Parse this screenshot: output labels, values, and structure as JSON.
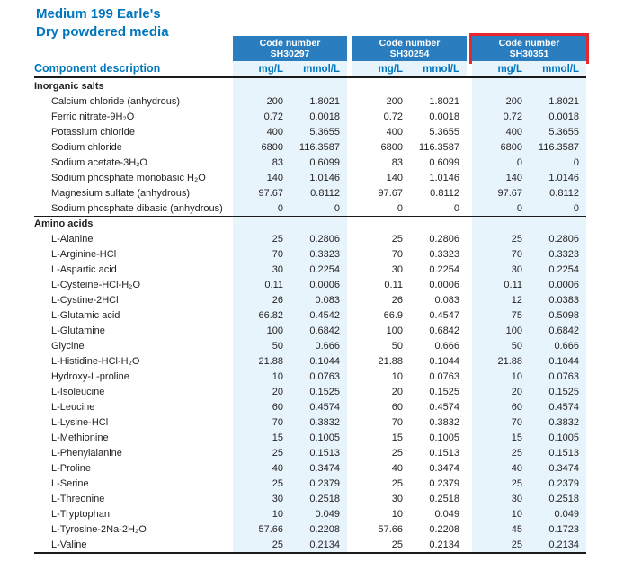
{
  "title": {
    "line1": "Medium 199 Earle's",
    "line2": "Dry powdered media"
  },
  "columns": {
    "component_header": "Component description",
    "code_label": "Code number",
    "codes": [
      "SH30297",
      "SH30254",
      "SH30351"
    ],
    "highlighted_code": "SH30351",
    "unit_headers": [
      "mg/L",
      "mmol/L"
    ]
  },
  "colors": {
    "brand_blue": "#0076bd",
    "code_block_bg": "#2a7dbf",
    "column_band": "#e8f4fb",
    "highlight_red": "#e8262d",
    "text": "#231f20",
    "rule": "#1a1a1a"
  },
  "sections": [
    {
      "label": "Inorganic salts",
      "rows": [
        {
          "name": "Calcium chloride (anhydrous)",
          "values": [
            "200",
            "1.8021",
            "200",
            "1.8021",
            "200",
            "1.8021"
          ]
        },
        {
          "name": "Ferric nitrate-9H₂O",
          "values": [
            "0.72",
            "0.0018",
            "0.72",
            "0.0018",
            "0.72",
            "0.0018"
          ]
        },
        {
          "name": "Potassium chloride",
          "values": [
            "400",
            "5.3655",
            "400",
            "5.3655",
            "400",
            "5.3655"
          ]
        },
        {
          "name": "Sodium chloride",
          "values": [
            "6800",
            "116.3587",
            "6800",
            "116.3587",
            "6800",
            "116.3587"
          ]
        },
        {
          "name": "Sodium acetate-3H₂O",
          "values": [
            "83",
            "0.6099",
            "83",
            "0.6099",
            "0",
            "0"
          ]
        },
        {
          "name": "Sodium phosphate monobasic H₂O",
          "values": [
            "140",
            "1.0146",
            "140",
            "1.0146",
            "140",
            "1.0146"
          ]
        },
        {
          "name": "Magnesium sulfate (anhydrous)",
          "values": [
            "97.67",
            "0.8112",
            "97.67",
            "0.8112",
            "97.67",
            "0.8112"
          ]
        },
        {
          "name": "Sodium phosphate dibasic (anhydrous)",
          "values": [
            "0",
            "0",
            "0",
            "0",
            "0",
            "0"
          ]
        }
      ]
    },
    {
      "label": "Amino acids",
      "rows": [
        {
          "name": "L-Alanine",
          "values": [
            "25",
            "0.2806",
            "25",
            "0.2806",
            "25",
            "0.2806"
          ]
        },
        {
          "name": "L-Arginine-HCl",
          "values": [
            "70",
            "0.3323",
            "70",
            "0.3323",
            "70",
            "0.3323"
          ]
        },
        {
          "name": "L-Aspartic acid",
          "values": [
            "30",
            "0.2254",
            "30",
            "0.2254",
            "30",
            "0.2254"
          ]
        },
        {
          "name": "L-Cysteine-HCl-H₂O",
          "values": [
            "0.11",
            "0.0006",
            "0.11",
            "0.0006",
            "0.11",
            "0.0006"
          ]
        },
        {
          "name": "L-Cystine-2HCl",
          "values": [
            "26",
            "0.083",
            "26",
            "0.083",
            "12",
            "0.0383"
          ]
        },
        {
          "name": "L-Glutamic acid",
          "values": [
            "66.82",
            "0.4542",
            "66.9",
            "0.4547",
            "75",
            "0.5098"
          ]
        },
        {
          "name": "L-Glutamine",
          "values": [
            "100",
            "0.6842",
            "100",
            "0.6842",
            "100",
            "0.6842"
          ]
        },
        {
          "name": "Glycine",
          "values": [
            "50",
            "0.666",
            "50",
            "0.666",
            "50",
            "0.666"
          ]
        },
        {
          "name": "L-Histidine-HCl-H₂O",
          "values": [
            "21.88",
            "0.1044",
            "21.88",
            "0.1044",
            "21.88",
            "0.1044"
          ]
        },
        {
          "name": "Hydroxy-L-proline",
          "values": [
            "10",
            "0.0763",
            "10",
            "0.0763",
            "10",
            "0.0763"
          ]
        },
        {
          "name": "L-Isoleucine",
          "values": [
            "20",
            "0.1525",
            "20",
            "0.1525",
            "20",
            "0.1525"
          ]
        },
        {
          "name": "L-Leucine",
          "values": [
            "60",
            "0.4574",
            "60",
            "0.4574",
            "60",
            "0.4574"
          ]
        },
        {
          "name": "L-Lysine-HCl",
          "values": [
            "70",
            "0.3832",
            "70",
            "0.3832",
            "70",
            "0.3832"
          ]
        },
        {
          "name": "L-Methionine",
          "values": [
            "15",
            "0.1005",
            "15",
            "0.1005",
            "15",
            "0.1005"
          ]
        },
        {
          "name": "L-Phenylalanine",
          "values": [
            "25",
            "0.1513",
            "25",
            "0.1513",
            "25",
            "0.1513"
          ]
        },
        {
          "name": "L-Proline",
          "values": [
            "40",
            "0.3474",
            "40",
            "0.3474",
            "40",
            "0.3474"
          ]
        },
        {
          "name": "L-Serine",
          "values": [
            "25",
            "0.2379",
            "25",
            "0.2379",
            "25",
            "0.2379"
          ]
        },
        {
          "name": "L-Threonine",
          "values": [
            "30",
            "0.2518",
            "30",
            "0.2518",
            "30",
            "0.2518"
          ]
        },
        {
          "name": "L-Tryptophan",
          "values": [
            "10",
            "0.049",
            "10",
            "0.049",
            "10",
            "0.049"
          ]
        },
        {
          "name": "L-Tyrosine-2Na-2H₂O",
          "values": [
            "57.66",
            "0.2208",
            "57.66",
            "0.2208",
            "45",
            "0.1723"
          ]
        },
        {
          "name": "L-Valine",
          "values": [
            "25",
            "0.2134",
            "25",
            "0.2134",
            "25",
            "0.2134"
          ]
        }
      ]
    }
  ]
}
